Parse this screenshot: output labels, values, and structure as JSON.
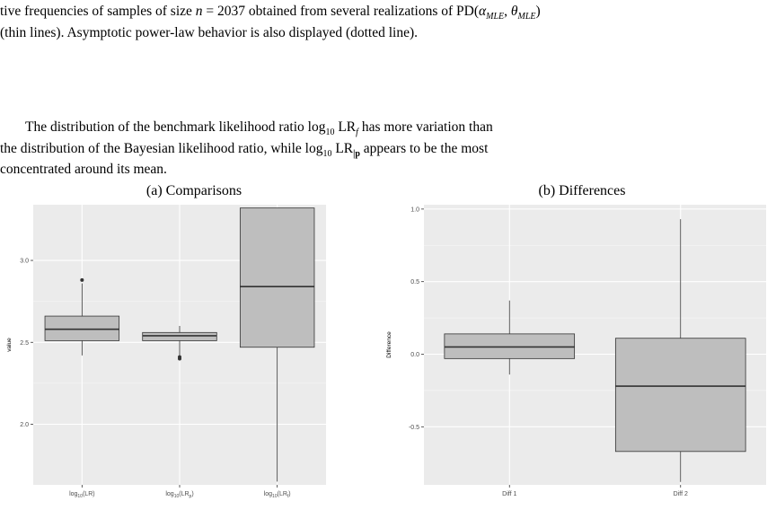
{
  "caption": {
    "line1_prefix": "tive frequencies of samples of size ",
    "n_var": "n",
    "n_rest": " = 2037 obtained from several realizations of PD(",
    "alpha": "α",
    "alpha_sub": "MLE",
    "comma": ", ",
    "theta": "θ",
    "theta_sub": "MLE",
    "close": ")",
    "line2": "(thin lines). Asymptotic power-law behavior is also displayed (dotted line)."
  },
  "body": {
    "line1_a": "The distribution of the benchmark likelihood ratio log",
    "line1_sub": "10",
    "line1_b": " LR",
    "line1_sub2": "f",
    "line1_c": " has more variation than",
    "line2_a": "the distribution of the Bayesian likelihood ratio, while log",
    "line2_sub": "10",
    "line2_b": " LR",
    "line2_sub2": "|p",
    "line2_c": " appears to be the most",
    "line3": "concentrated around its mean."
  },
  "chart_data": [
    {
      "type": "boxplot",
      "title": "(a) Comparisons",
      "xlabel": "",
      "ylabel": "value",
      "ylim": [
        1.63,
        3.34
      ],
      "yticks": [
        2.0,
        2.5,
        3.0
      ],
      "ytick_labels": [
        "2.0",
        "2.5",
        "3.0"
      ],
      "grid": true,
      "categories": [
        "log10(LR)",
        "log10(LRp)",
        "log10(LRf)"
      ],
      "category_labels": [
        {
          "main": "log",
          "sub": "10",
          "tail": "(LR)"
        },
        {
          "main": "log",
          "sub": "10",
          "tail": "(LR",
          "sub2": "p",
          "tail2": ")"
        },
        {
          "main": "log",
          "sub": "10",
          "tail": "(LR",
          "sub2": "f",
          "tail2": ")"
        }
      ],
      "boxes": [
        {
          "min": 2.42,
          "q1": 2.51,
          "median": 2.58,
          "q3": 2.66,
          "max": 2.86,
          "outliers": [
            2.88
          ]
        },
        {
          "min": 2.42,
          "q1": 2.51,
          "median": 2.54,
          "q3": 2.56,
          "max": 2.6,
          "outliers": [
            2.4,
            2.41
          ]
        },
        {
          "min": 1.65,
          "q1": 2.47,
          "median": 2.84,
          "q3": 3.32,
          "max": 3.32,
          "outliers": []
        }
      ]
    },
    {
      "type": "boxplot",
      "title": "(b) Differences",
      "xlabel": "",
      "ylabel": "Difference",
      "ylim": [
        -0.9,
        1.03
      ],
      "yticks": [
        -0.5,
        0.0,
        0.5,
        1.0
      ],
      "ytick_labels": [
        "-0.5",
        "0.0",
        "0.5",
        "1.0"
      ],
      "grid": true,
      "categories": [
        "Diff 1",
        "Diff 2"
      ],
      "boxes": [
        {
          "min": -0.14,
          "q1": -0.03,
          "median": 0.05,
          "q3": 0.14,
          "max": 0.37,
          "outliers": []
        },
        {
          "min": -0.88,
          "q1": -0.67,
          "median": -0.22,
          "q3": 0.11,
          "max": 0.93,
          "outliers": []
        }
      ]
    }
  ]
}
